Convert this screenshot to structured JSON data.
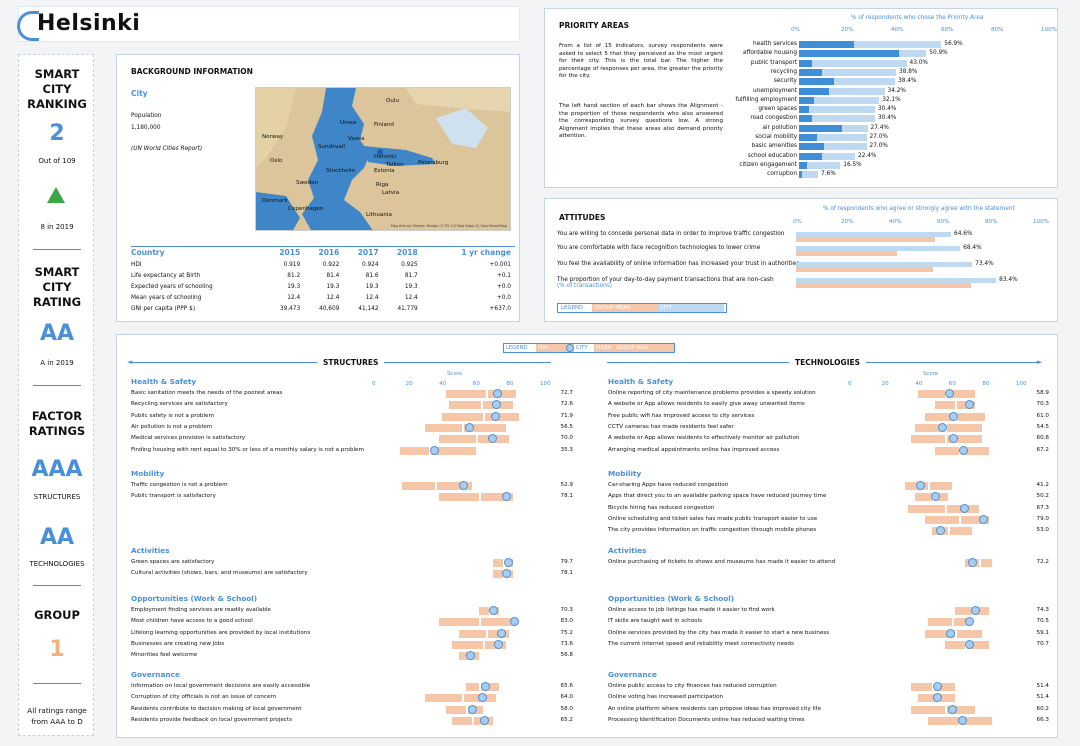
{
  "city": "Helsinki",
  "sidebar": {
    "ranking_title": "SMART CITY RANKING",
    "ranking_lines": [
      "SMART",
      "CITY",
      "RANKING"
    ],
    "rank": "2",
    "rank_of": "Out of 109",
    "trend_2019": "8 in 2019",
    "rating_lines": [
      "SMART",
      "CITY",
      "RATING"
    ],
    "rating": "AA",
    "rating_2019": "A in 2019",
    "factor_lines": [
      "FACTOR",
      "RATINGS"
    ],
    "structures_rating": "AAA",
    "structures_label": "STRUCTURES",
    "technologies_rating": "AA",
    "technologies_label": "TECHNOLOGIES",
    "group_label": "GROUP",
    "group": "1",
    "footnote_lines": [
      "All ratings range",
      "from AAA to D"
    ],
    "colors": {
      "accent": "#4a90d9",
      "up": "#3aa845",
      "group": "#f0b27a"
    }
  },
  "background": {
    "title": "BACKGROUND INFORMATION",
    "city_label": "City",
    "population_label": "Population",
    "population": "1,180,000",
    "source": "(UN World Cities Report)",
    "map_credit": "Map tiles by Stamen Design CC BY 3.0 Map Data (C) OpenStreetMap",
    "map_labels": [
      "Norway",
      "Sweden",
      "Finland",
      "Estonia",
      "Latvia",
      "Lithuania",
      "Denmark",
      "Copenhagen",
      "Stockholm",
      "Helsinki",
      "Riga",
      "Oslo",
      "Petersburg",
      "Tallinn",
      "Umea",
      "Sundsvall",
      "Vaasa",
      "Oulu"
    ],
    "table_headers": [
      "Country",
      "2015",
      "2016",
      "2017",
      "2018",
      "1 yr change"
    ],
    "table_rows": [
      [
        "HDI",
        "0.919",
        "0.922",
        "0.924",
        "0.925",
        "+0.001"
      ],
      [
        "Life expectancy at Birth",
        "81.2",
        "81.4",
        "81.6",
        "81.7",
        "+0.1"
      ],
      [
        "Expected years of schooling",
        "19.3",
        "19.3",
        "19.3",
        "19.3",
        "+0.0"
      ],
      [
        "Mean years of schooling",
        "12.4",
        "12.4",
        "12.4",
        "12.4",
        "+0.0"
      ],
      [
        "GNI per capita (PPP $)",
        "39,473",
        "40,609",
        "41,142",
        "41,779",
        "+637.0"
      ]
    ]
  },
  "priority": {
    "title": "PRIORITY AREAS",
    "axis_title": "% of respondents who chose the Priority Area",
    "ticks": [
      "0%",
      "20%",
      "40%",
      "60%",
      "80%",
      "100%"
    ],
    "description_1": "From a list of 15 indicators, survey respondents were asked to select 5 that they perceived as the most urgent for their city. This is the total bar. The higher the percentage of responses per area, the greater the priority for the city.",
    "description_2": "The left hand section of each bar shows the Alignment - the proportion of those respondents who also answered the corresponding survey questions low. A strong Alignment implies that these areas also demand priority attention.",
    "items": [
      {
        "label": "health services",
        "total": 56.9,
        "align": 22,
        "val": "56.9%"
      },
      {
        "label": "affordable housing",
        "total": 50.9,
        "align": 40,
        "val": "50.9%"
      },
      {
        "label": "public transport",
        "total": 43.0,
        "align": 5,
        "val": "43.0%"
      },
      {
        "label": "recycling",
        "total": 38.8,
        "align": 9,
        "val": "38.8%"
      },
      {
        "label": "security",
        "total": 38.4,
        "align": 14,
        "val": "38.4%"
      },
      {
        "label": "unemployment",
        "total": 34.2,
        "align": 12,
        "val": "34.2%"
      },
      {
        "label": "fulfilling employment",
        "total": 32.1,
        "align": 6,
        "val": "32.1%"
      },
      {
        "label": "green spaces",
        "total": 30.4,
        "align": 4,
        "val": "30.4%"
      },
      {
        "label": "road congestion",
        "total": 30.4,
        "align": 5,
        "val": "30.4%"
      },
      {
        "label": "air pollution",
        "total": 27.4,
        "align": 17,
        "val": "27.4%"
      },
      {
        "label": "social mobility",
        "total": 27.0,
        "align": 7,
        "val": "27.0%"
      },
      {
        "label": "basic amenities",
        "total": 27.0,
        "align": 10,
        "val": "27.0%"
      },
      {
        "label": "school education",
        "total": 22.4,
        "align": 9,
        "val": "22.4%"
      },
      {
        "label": "citizen engagement",
        "total": 16.5,
        "align": 3,
        "val": "16.5%"
      },
      {
        "label": "corruption",
        "total": 7.6,
        "align": 1,
        "val": "7.6%"
      }
    ]
  },
  "attitudes": {
    "title": "ATTITUDES",
    "axis_title": "% of respondents who agree or strongly agree with the statement",
    "ticks": [
      "0%",
      "20%",
      "40%",
      "60%",
      "80%",
      "100%"
    ],
    "items": [
      {
        "label": "You are willing to concede personal data in order to improve traffic congestion",
        "city": 64.6,
        "min": 58,
        "val": "64.6%"
      },
      {
        "label": "You are comfortable with face recognition technologies to lower crime",
        "city": 68.4,
        "min": 42,
        "val": "68.4%"
      },
      {
        "label": "You feel the availability of online information has increased your trust in authorities",
        "city": 73.4,
        "min": 57,
        "val": "73.4%"
      },
      {
        "label": "The proportion of your day-to-day payment transactions that are non-cash",
        "sub": "(% of transactions)",
        "city": 83.4,
        "min": 73,
        "val": "83.4%"
      }
    ],
    "legend": [
      "LEGEND",
      "GROUP MEAN",
      "CITY"
    ]
  },
  "bottom": {
    "legend": [
      "LEGEND",
      "MIN",
      "CITY",
      "MEAN",
      "GROUP MAX"
    ],
    "structures_title": "STRUCTURES",
    "technologies_title": "TECHNOLOGIES",
    "score_label": "Score",
    "ticks": [
      "0",
      "20",
      "40",
      "60",
      "80",
      "100"
    ],
    "structures": [
      {
        "title": "Health & Safety",
        "items": [
          {
            "label": "Basic sanitation meets the needs of the poorest areas",
            "min": 42,
            "max": 84,
            "mean": 66,
            "city": 72.7,
            "val": "72.7"
          },
          {
            "label": "Recycling services are satisfactory",
            "min": 44,
            "max": 82,
            "mean": 63,
            "city": 72.6,
            "val": "72.6"
          },
          {
            "label": "Public safety is not a problem",
            "min": 40,
            "max": 86,
            "mean": 64,
            "city": 71.9,
            "val": "71.9"
          },
          {
            "label": "Air pollution is not a problem",
            "min": 30,
            "max": 78,
            "mean": 52,
            "city": 56.5,
            "val": "56.5"
          },
          {
            "label": "Medical services provision is satisfactory",
            "min": 38,
            "max": 80,
            "mean": 60,
            "city": 70.0,
            "val": "70.0"
          },
          {
            "label": "Finding housing with rent equal to 30% or less of a monthly salary is not a problem",
            "min": 15,
            "max": 60,
            "mean": 32,
            "city": 35.3,
            "val": "35.3"
          }
        ]
      },
      {
        "title": "Mobility",
        "items": [
          {
            "label": "Traffic congestion is not a problem",
            "min": 16,
            "max": 58,
            "mean": 36,
            "city": 52.9,
            "val": "52.9"
          },
          {
            "label": "Public transport is satisfactory",
            "min": 38,
            "max": 82,
            "mean": 62,
            "city": 78.1,
            "val": "78.1"
          }
        ]
      },
      {
        "title": "Activities",
        "items": [
          {
            "label": "Green spaces are satisfactory",
            "min": 70,
            "max": 82,
            "mean": 76,
            "city": 79.7,
            "val": "79.7"
          },
          {
            "label": "Cultural activities (shows, bars, and museums) are satisfactory",
            "min": 70,
            "max": 82,
            "mean": 76,
            "city": 78.1,
            "val": "78.1"
          }
        ]
      },
      {
        "title": "Opportunities (Work & School)",
        "items": [
          {
            "label": "Employment finding services are readily available",
            "min": 62,
            "max": 74,
            "mean": 68,
            "city": 70.3,
            "val": "70.3"
          },
          {
            "label": "Most children have access to a good school",
            "min": 38,
            "max": 84,
            "mean": 62,
            "city": 83.0,
            "val": "83.0"
          },
          {
            "label": "Lifelong learning opportunities are provided by local institutions",
            "min": 50,
            "max": 80,
            "mean": 66,
            "city": 75.2,
            "val": "75.2"
          },
          {
            "label": "Businesses are creating new jobs",
            "min": 46,
            "max": 78,
            "mean": 64,
            "city": 73.6,
            "val": "73.6"
          },
          {
            "label": "Minorities feel welcome",
            "min": 50,
            "max": 62,
            "mean": 56,
            "city": 56.8,
            "val": "56.8"
          }
        ]
      },
      {
        "title": "Governance",
        "items": [
          {
            "label": "Information on local government decisions are easily accessible",
            "min": 54,
            "max": 74,
            "mean": 62,
            "city": 65.6,
            "val": "65.6"
          },
          {
            "label": "Corruption of city officials is not an issue of concern",
            "min": 30,
            "max": 72,
            "mean": 52,
            "city": 64.0,
            "val": "64.0"
          },
          {
            "label": "Residents contribute to decision making of local government",
            "min": 42,
            "max": 64,
            "mean": 54,
            "city": 58.0,
            "val": "58.0"
          },
          {
            "label": "Residents provide feedback on local government projects",
            "min": 46,
            "max": 70,
            "mean": 58,
            "city": 65.2,
            "val": "65.2"
          }
        ]
      }
    ],
    "technologies": [
      {
        "title": "Health & Safety",
        "items": [
          {
            "label": "Online reporting of city maintenance problems provides a speedy solution",
            "min": 40,
            "max": 74,
            "mean": 56,
            "city": 58.9,
            "val": "58.9"
          },
          {
            "label": "A website or App allows residents to easily give away unwanted items",
            "min": 50,
            "max": 74,
            "mean": 62,
            "city": 70.3,
            "val": "70.3"
          },
          {
            "label": "Free public wifi has improved access to city services",
            "min": 44,
            "max": 80,
            "mean": 62,
            "city": 61.0,
            "val": "61.0"
          },
          {
            "label": "CCTV cameras has made residents feel safer",
            "min": 38,
            "max": 78,
            "mean": 56,
            "city": 54.5,
            "val": "54.5"
          },
          {
            "label": "A website or App allows residents to effectively monitor air pollution",
            "min": 36,
            "max": 78,
            "mean": 56,
            "city": 60.8,
            "val": "60.8"
          },
          {
            "label": "Arranging medical appointments online has improved access",
            "min": 50,
            "max": 82,
            "mean": 64,
            "city": 67.2,
            "val": "67.2"
          }
        ]
      },
      {
        "title": "Mobility",
        "items": [
          {
            "label": "Car-sharing Apps have reduced congestion",
            "min": 32,
            "max": 60,
            "mean": 46,
            "city": 41.2,
            "val": "41.2"
          },
          {
            "label": "Apps that direct you to an available parking space have reduced journey time",
            "min": 38,
            "max": 58,
            "mean": 48,
            "city": 50.2,
            "val": "50.2"
          },
          {
            "label": "Bicycle hiring has reduced congestion",
            "min": 34,
            "max": 76,
            "mean": 56,
            "city": 67.3,
            "val": "67.3"
          },
          {
            "label": "Online scheduling and ticket sales has made public transport easier to use",
            "min": 44,
            "max": 82,
            "mean": 64,
            "city": 79.0,
            "val": "79.0"
          },
          {
            "label": "The city provides information on traffic congestion through mobile phones",
            "min": 48,
            "max": 72,
            "mean": 58,
            "city": 53.0,
            "val": "53.0"
          }
        ]
      },
      {
        "title": "Activities",
        "items": [
          {
            "label": "Online purchasing of tickets to shows and museums has made it easier to attend",
            "min": 68,
            "max": 84,
            "mean": 76,
            "city": 72.2,
            "val": "72.2"
          }
        ]
      },
      {
        "title": "Opportunities (Work & School)",
        "items": [
          {
            "label": "Online access to job listings has made it easier to find work",
            "min": 62,
            "max": 82,
            "mean": 72,
            "city": 74.3,
            "val": "74.3"
          },
          {
            "label": "IT skills are taught well in schools",
            "min": 46,
            "max": 72,
            "mean": 60,
            "city": 70.5,
            "val": "70.5"
          },
          {
            "label": "Online services provided by the city has made it easier to start a new business",
            "min": 44,
            "max": 78,
            "mean": 62,
            "city": 59.1,
            "val": "59.1"
          },
          {
            "label": "The current internet speed and reliability meet connectivity needs",
            "min": 56,
            "max": 82,
            "mean": 68,
            "city": 70.7,
            "val": "70.7"
          }
        ]
      },
      {
        "title": "Governance",
        "items": [
          {
            "label": "Online public access to city finances has reduced corruption",
            "min": 36,
            "max": 62,
            "mean": 48,
            "city": 51.4,
            "val": "51.4"
          },
          {
            "label": "Online voting has increased participation",
            "min": 40,
            "max": 62,
            "mean": 52,
            "city": 51.4,
            "val": "51.4"
          },
          {
            "label": "An online platform where residents can propose ideas has improved city life",
            "min": 36,
            "max": 74,
            "mean": 56,
            "city": 60.2,
            "val": "60.2"
          },
          {
            "label": "Processing Identification Documents online has reduced waiting times",
            "min": 46,
            "max": 84,
            "mean": 64,
            "city": 66.3,
            "val": "66.3"
          }
        ]
      }
    ]
  }
}
